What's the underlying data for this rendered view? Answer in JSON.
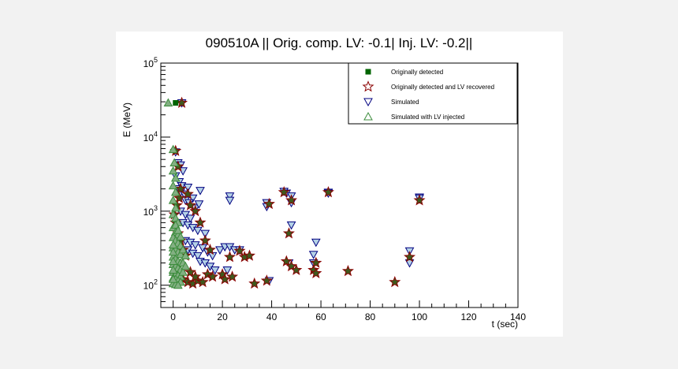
{
  "chart_data": {
    "type": "scatter",
    "title": "090510A || Orig. comp. LV: -0.1| Inj. LV: -0.2||",
    "xlabel": "t (sec)",
    "ylabel": "E (MeV)",
    "xlim": [
      -5,
      140
    ],
    "ylim": [
      50,
      100000
    ],
    "yscale": "log",
    "x_ticks": [
      0,
      20,
      40,
      60,
      80,
      100,
      120,
      140
    ],
    "y_ticks": [
      {
        "value": 100,
        "base": "10",
        "exp": "2"
      },
      {
        "value": 1000,
        "base": "10",
        "exp": "3"
      },
      {
        "value": 10000,
        "base": "10",
        "exp": "4"
      },
      {
        "value": 100000,
        "base": "10",
        "exp": "5"
      }
    ],
    "legend_position": "top-right",
    "series": [
      {
        "name": "Originally detected",
        "marker": "square",
        "color": "#006400",
        "points": [
          [
            1,
            29000
          ]
        ]
      },
      {
        "name": "Originally detected and LV recovered",
        "marker": "star",
        "color": "#8b0000",
        "fill": "#3d5a1e",
        "points": [
          [
            3.5,
            29000
          ],
          [
            1,
            6500
          ],
          [
            2,
            4000
          ],
          [
            3,
            2000
          ],
          [
            2.5,
            1500
          ],
          [
            1.5,
            1200
          ],
          [
            0.5,
            900
          ],
          [
            1,
            700
          ],
          [
            2,
            500
          ],
          [
            3,
            400
          ],
          [
            4,
            300
          ],
          [
            5,
            250
          ],
          [
            2,
            200
          ],
          [
            3,
            150
          ],
          [
            4,
            120
          ],
          [
            6,
            110
          ],
          [
            8,
            105
          ],
          [
            10,
            115
          ],
          [
            12,
            110
          ],
          [
            6,
            1700
          ],
          [
            7,
            1200
          ],
          [
            9,
            1000
          ],
          [
            11,
            700
          ],
          [
            13,
            400
          ],
          [
            15,
            300
          ],
          [
            7,
            150
          ],
          [
            9,
            130
          ],
          [
            14,
            140
          ],
          [
            16,
            130
          ],
          [
            20,
            140
          ],
          [
            21,
            120
          ],
          [
            23,
            240
          ],
          [
            24,
            130
          ],
          [
            27,
            290
          ],
          [
            29,
            240
          ],
          [
            31,
            250
          ],
          [
            33,
            105
          ],
          [
            38,
            115
          ],
          [
            39,
            1250
          ],
          [
            45,
            1800
          ],
          [
            46,
            210
          ],
          [
            47,
            500
          ],
          [
            48,
            1400
          ],
          [
            48,
            180
          ],
          [
            50,
            160
          ],
          [
            57,
            160
          ],
          [
            58,
            145
          ],
          [
            58,
            200
          ],
          [
            63,
            1800
          ],
          [
            71,
            155
          ],
          [
            90,
            110
          ],
          [
            96,
            240
          ],
          [
            100,
            1400
          ]
        ]
      },
      {
        "name": "Simulated",
        "marker": "triangle-down",
        "color": "#000080",
        "fill": "#b4d2e6",
        "points": [
          [
            3.5,
            29000
          ],
          [
            1,
            6300
          ],
          [
            2,
            4500
          ],
          [
            3,
            4200
          ],
          [
            4,
            3500
          ],
          [
            1,
            3000
          ],
          [
            2.5,
            2500
          ],
          [
            3.5,
            2200
          ],
          [
            1.5,
            2000
          ],
          [
            3,
            1800
          ],
          [
            4.5,
            1700
          ],
          [
            6,
            2100
          ],
          [
            8,
            1500
          ],
          [
            11,
            1900
          ],
          [
            5,
            1400
          ],
          [
            6.5,
            1300
          ],
          [
            9,
            1100
          ],
          [
            10.5,
            1250
          ],
          [
            3,
            1000
          ],
          [
            5,
            900
          ],
          [
            7,
            800
          ],
          [
            4,
            700
          ],
          [
            6,
            650
          ],
          [
            8,
            600
          ],
          [
            10,
            550
          ],
          [
            13,
            500
          ],
          [
            5,
            400
          ],
          [
            7,
            380
          ],
          [
            9,
            350
          ],
          [
            12,
            320
          ],
          [
            14,
            280
          ],
          [
            16,
            250
          ],
          [
            19,
            300
          ],
          [
            21,
            330
          ],
          [
            23,
            330
          ],
          [
            25,
            300
          ],
          [
            27,
            300
          ],
          [
            6,
            300
          ],
          [
            8,
            270
          ],
          [
            10,
            250
          ],
          [
            11,
            210
          ],
          [
            13,
            200
          ],
          [
            15,
            180
          ],
          [
            17,
            160
          ],
          [
            22,
            160
          ],
          [
            23,
            1600
          ],
          [
            23,
            1400
          ],
          [
            38,
            1300
          ],
          [
            38,
            1150
          ],
          [
            39,
            115
          ],
          [
            45,
            1850
          ],
          [
            46,
            1750
          ],
          [
            47,
            200
          ],
          [
            48,
            650
          ],
          [
            48,
            1600
          ],
          [
            48,
            1300
          ],
          [
            57,
            260
          ],
          [
            57,
            200
          ],
          [
            58,
            380
          ],
          [
            63,
            1800
          ],
          [
            63,
            1750
          ],
          [
            96,
            290
          ],
          [
            96,
            200
          ],
          [
            100,
            1550
          ],
          [
            100,
            1500
          ]
        ]
      },
      {
        "name": "Simulated with LV injected",
        "marker": "triangle-up",
        "color": "#3c8c3c",
        "fill": "#82af82",
        "points": [
          [
            -2,
            29000
          ],
          [
            0,
            6800
          ],
          [
            0.5,
            4500
          ],
          [
            0,
            3500
          ],
          [
            1,
            2800
          ],
          [
            0,
            2200
          ],
          [
            1,
            1800
          ],
          [
            0,
            1400
          ],
          [
            1,
            1100
          ],
          [
            0,
            900
          ],
          [
            1,
            800
          ],
          [
            2,
            700
          ],
          [
            0,
            600
          ],
          [
            1,
            520
          ],
          [
            2,
            480
          ],
          [
            0,
            440
          ],
          [
            1,
            400
          ],
          [
            2,
            370
          ],
          [
            3,
            340
          ],
          [
            0,
            320
          ],
          [
            1,
            300
          ],
          [
            2,
            280
          ],
          [
            3,
            260
          ],
          [
            0,
            240
          ],
          [
            1,
            225
          ],
          [
            2,
            210
          ],
          [
            3,
            200
          ],
          [
            0,
            190
          ],
          [
            1,
            180
          ],
          [
            2,
            170
          ],
          [
            3,
            160
          ],
          [
            0,
            150
          ],
          [
            1,
            140
          ],
          [
            2,
            135
          ],
          [
            3,
            130
          ],
          [
            0,
            125
          ],
          [
            1,
            120
          ],
          [
            2,
            115
          ],
          [
            3,
            110
          ],
          [
            0,
            105
          ],
          [
            1,
            102
          ],
          [
            2,
            100
          ],
          [
            4,
            300
          ],
          [
            4,
            200
          ],
          [
            4,
            150
          ],
          [
            5,
            250
          ],
          [
            5,
            180
          ],
          [
            1,
            650
          ],
          [
            2,
            550
          ],
          [
            3,
            450
          ],
          [
            0,
            350
          ],
          [
            0,
            280
          ],
          [
            0,
            210
          ],
          [
            0,
            160
          ],
          [
            0,
            120
          ]
        ]
      }
    ]
  }
}
